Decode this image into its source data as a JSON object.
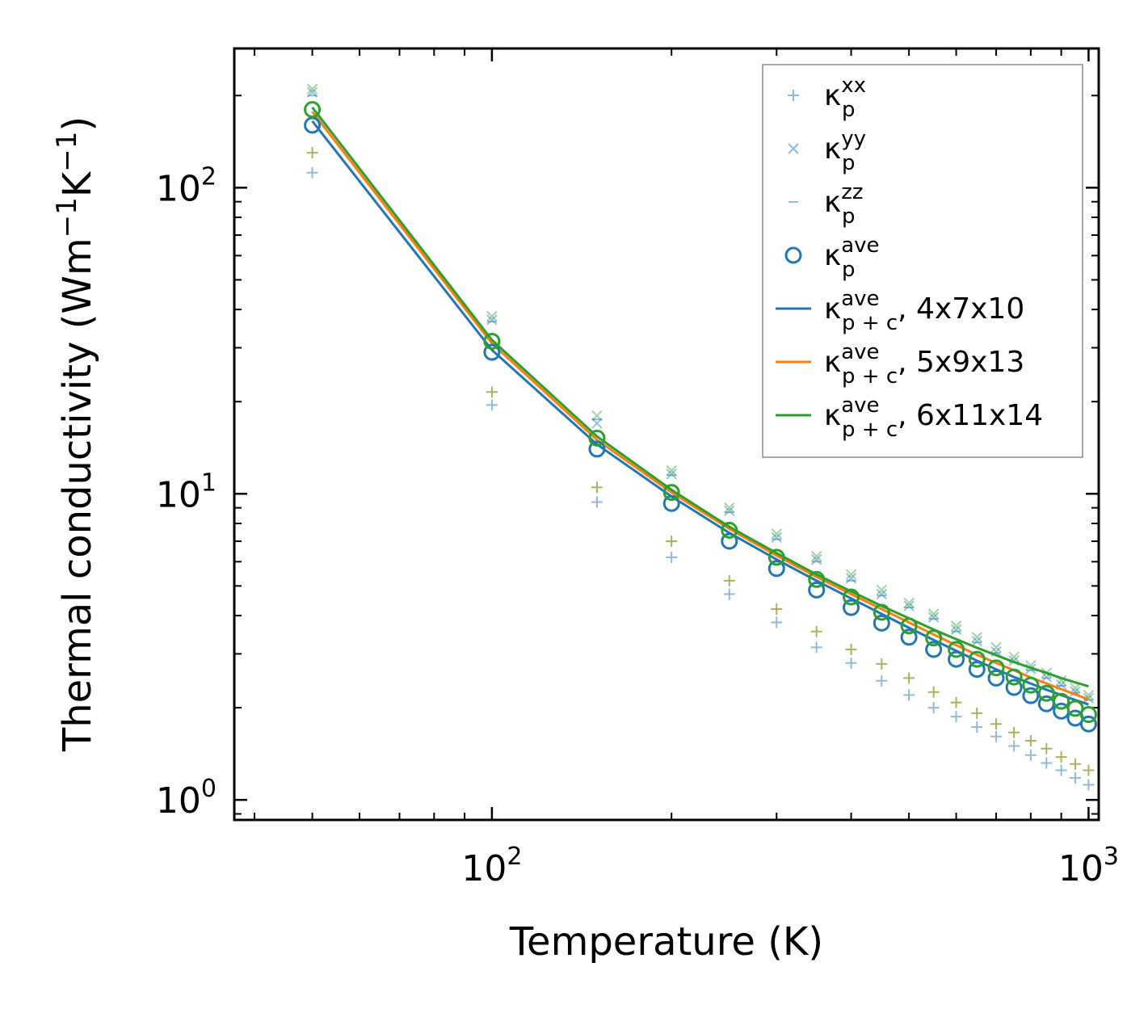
{
  "chart_data": {
    "type": "scatter",
    "x_scale": "log",
    "y_scale": "log",
    "xlabel": "Temperature (K)",
    "ylabel_parts": {
      "pre": "Thermal conductivity (Wm",
      "exp1": "−1",
      "mid": "K",
      "exp2": "−1",
      "post": ")"
    },
    "xlim": [
      37,
      1040
    ],
    "ylim": [
      0.86,
      285
    ],
    "x_ticks": [
      {
        "base": "10",
        "exp": "2",
        "value": 100
      },
      {
        "base": "10",
        "exp": "3",
        "value": 1000
      }
    ],
    "y_ticks": [
      {
        "base": "10",
        "exp": "0",
        "value": 1
      },
      {
        "base": "10",
        "exp": "1",
        "value": 10
      },
      {
        "base": "10",
        "exp": "2",
        "value": 100
      }
    ],
    "temperatures": [
      50,
      100,
      150,
      200,
      250,
      300,
      350,
      400,
      450,
      500,
      550,
      600,
      650,
      700,
      750,
      800,
      850,
      900,
      950,
      1000
    ],
    "colors": {
      "blue": "#1f77b4",
      "orange": "#ff7f0e",
      "green": "#2ca02c",
      "olive": "#8c9a2a"
    },
    "series": [
      {
        "name": "kxx_4x7x10",
        "marker": "plus",
        "color": "#1f77b4",
        "opacity": 0.5,
        "values": [
          112,
          19.5,
          9.4,
          6.2,
          4.7,
          3.8,
          3.15,
          2.8,
          2.45,
          2.2,
          2.0,
          1.87,
          1.73,
          1.61,
          1.5,
          1.4,
          1.32,
          1.25,
          1.18,
          1.12
        ]
      },
      {
        "name": "kxx_6x11x14",
        "marker": "plus",
        "color": "#8c9a2a",
        "opacity": 0.75,
        "values": [
          130,
          21.5,
          10.5,
          7.0,
          5.2,
          4.2,
          3.55,
          3.1,
          2.78,
          2.5,
          2.25,
          2.08,
          1.92,
          1.77,
          1.66,
          1.56,
          1.47,
          1.38,
          1.31,
          1.25
        ]
      },
      {
        "name": "kyy_4x7x10",
        "marker": "x",
        "color": "#1f77b4",
        "opacity": 0.45,
        "values": [
          205,
          37,
          17,
          11.6,
          8.8,
          7.2,
          6.1,
          5.3,
          4.7,
          4.3,
          3.95,
          3.6,
          3.3,
          3.05,
          2.85,
          2.68,
          2.52,
          2.38,
          2.26,
          2.15
        ]
      },
      {
        "name": "kyy_6x11x14",
        "marker": "x",
        "color": "#2ca02c",
        "opacity": 0.45,
        "values": [
          210,
          38,
          18,
          11.9,
          9.0,
          7.4,
          6.25,
          5.45,
          4.85,
          4.4,
          4.05,
          3.7,
          3.4,
          3.15,
          2.93,
          2.75,
          2.6,
          2.45,
          2.32,
          2.2
        ]
      },
      {
        "name": "kzz",
        "marker": "hline",
        "color": "#1f77b4",
        "opacity": 0.5,
        "values": [
          200,
          36.5,
          17.5,
          11.5,
          8.7,
          7.1,
          6.0,
          5.2,
          4.65,
          4.25,
          3.9,
          3.55,
          3.27,
          3.02,
          2.82,
          2.65,
          2.5,
          2.36,
          2.24,
          2.12
        ]
      },
      {
        "name": "kave_4x7x10",
        "marker": "circle",
        "color": "#1f77b4",
        "opacity": 1,
        "values": [
          160,
          29,
          14.0,
          9.3,
          7.0,
          5.7,
          4.85,
          4.25,
          3.78,
          3.4,
          3.1,
          2.88,
          2.67,
          2.5,
          2.33,
          2.19,
          2.06,
          1.95,
          1.85,
          1.77
        ]
      },
      {
        "name": "kave_6x11x14",
        "marker": "circle",
        "color": "#2ca02c",
        "opacity": 1,
        "values": [
          180,
          31.5,
          15.2,
          10.1,
          7.6,
          6.2,
          5.25,
          4.6,
          4.1,
          3.7,
          3.38,
          3.1,
          2.88,
          2.7,
          2.52,
          2.37,
          2.23,
          2.1,
          1.99,
          1.9
        ]
      },
      {
        "name": "kpc_4x7x10",
        "marker": "line",
        "color": "#1f77b4",
        "opacity": 1,
        "values": [
          165,
          29.5,
          14.5,
          9.8,
          7.45,
          6.1,
          5.2,
          4.55,
          4.05,
          3.65,
          3.33,
          3.07,
          2.85,
          2.67,
          2.52,
          2.4,
          2.29,
          2.2,
          2.12,
          2.05
        ]
      },
      {
        "name": "kpc_5x9x13",
        "marker": "line",
        "color": "#ff7f0e",
        "opacity": 1,
        "values": [
          177,
          31.0,
          15.0,
          10.1,
          7.68,
          6.28,
          5.35,
          4.7,
          4.2,
          3.8,
          3.47,
          3.2,
          2.98,
          2.8,
          2.65,
          2.51,
          2.4,
          2.3,
          2.21,
          2.13
        ]
      },
      {
        "name": "kpc_6x11x14",
        "marker": "line",
        "color": "#2ca02c",
        "opacity": 1,
        "values": [
          183,
          31.8,
          15.4,
          10.3,
          7.8,
          6.4,
          5.45,
          4.8,
          4.3,
          3.92,
          3.6,
          3.35,
          3.14,
          2.97,
          2.82,
          2.7,
          2.6,
          2.5,
          2.42,
          2.35
        ]
      }
    ],
    "legend": {
      "position": "upper right",
      "entries": [
        {
          "marker": "plus",
          "color": "#1f77b4",
          "base": "κ",
          "sub": "p",
          "sup": "xx",
          "suffix": ""
        },
        {
          "marker": "x",
          "color": "#1f77b4",
          "base": "κ",
          "sub": "p",
          "sup": "yy",
          "suffix": ""
        },
        {
          "marker": "hline",
          "color": "#1f77b4",
          "base": "κ",
          "sub": "p",
          "sup": "zz",
          "suffix": ""
        },
        {
          "marker": "circle",
          "color": "#1f77b4",
          "base": "κ",
          "sub": "p",
          "sup": "ave",
          "suffix": ""
        },
        {
          "marker": "line",
          "color": "#1f77b4",
          "base": "κ",
          "sub": "p + c",
          "sup": "ave",
          "suffix": ", 4x7x10"
        },
        {
          "marker": "line",
          "color": "#ff7f0e",
          "base": "κ",
          "sub": "p + c",
          "sup": "ave",
          "suffix": ", 5x9x13"
        },
        {
          "marker": "line",
          "color": "#2ca02c",
          "base": "κ",
          "sub": "p + c",
          "sup": "ave",
          "suffix": ", 6x11x14"
        }
      ]
    }
  }
}
